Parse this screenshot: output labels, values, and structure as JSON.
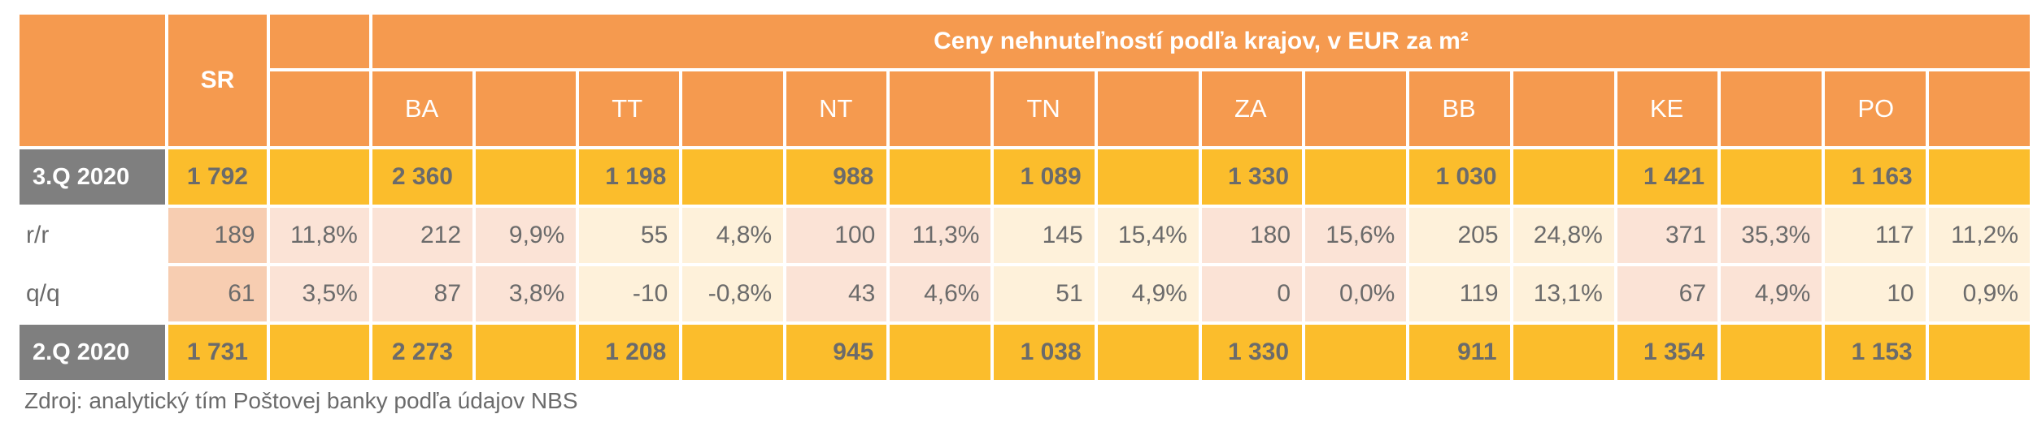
{
  "header": {
    "sr_label": "SR",
    "title": "Ceny nehnuteľností podľa krajov, v EUR za m²",
    "regions": [
      "BA",
      "TT",
      "NT",
      "TN",
      "ZA",
      "BB",
      "KE",
      "PO"
    ]
  },
  "rows": {
    "q3": {
      "label": "3.Q 2020",
      "sr": "1 792",
      "values": [
        "2 360",
        "1 198",
        "988",
        "1 089",
        "1 330",
        "1 030",
        "1 421",
        "1 163"
      ]
    },
    "rr": {
      "label": "r/r",
      "sr_abs": "189",
      "sr_pct": "11,8%",
      "abs": [
        "212",
        "55",
        "100",
        "145",
        "180",
        "205",
        "371",
        "117"
      ],
      "pct": [
        "9,9%",
        "4,8%",
        "11,3%",
        "15,4%",
        "15,6%",
        "24,8%",
        "35,3%",
        "11,2%"
      ]
    },
    "qq": {
      "label": "q/q",
      "sr_abs": "61",
      "sr_pct": "3,5%",
      "abs": [
        "87",
        "-10",
        "43",
        "51",
        "0",
        "119",
        "67",
        "10"
      ],
      "pct": [
        "3,8%",
        "-0,8%",
        "4,6%",
        "4,9%",
        "0,0%",
        "13,1%",
        "4,9%",
        "0,9%"
      ]
    },
    "q2": {
      "label": "2.Q 2020",
      "sr": "1 731",
      "values": [
        "2 273",
        "1 208",
        "945",
        "1 038",
        "1 330",
        "911",
        "1 354",
        "1 153"
      ]
    }
  },
  "source": "Zdroj: analytický tím Poštovej banky podľa údajov NBS",
  "colors": {
    "header_orange": "#f59a4f",
    "quarter_yellow": "#fbbd2c",
    "label_gray": "#7f7f7f",
    "sr_change": "#f7cdb1",
    "pink_change": "#fbe3d6",
    "cream_change": "#fef1da",
    "text_gray": "#6b6b6b"
  }
}
